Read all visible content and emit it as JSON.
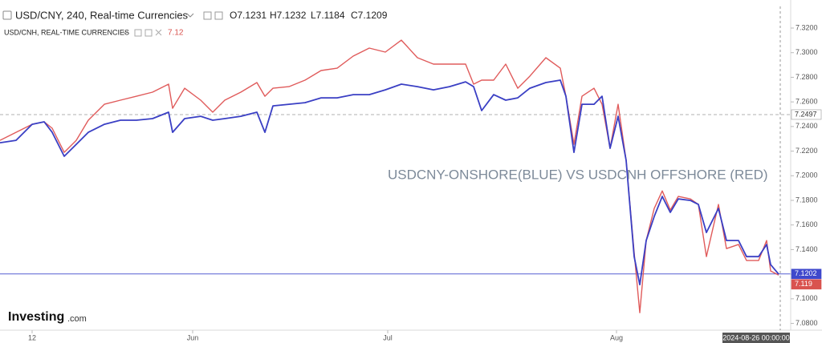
{
  "chart_data": {
    "type": "line",
    "header": {
      "ohlc": [
        "O7.1231",
        "H7.1232",
        "L7.1184",
        "C7.1209"
      ],
      "last": 7.12
    },
    "annotation": "USDCNY-ONSHORE(BLUE) VS USDCNH OFFSHORE (RED)",
    "logo": {
      "brand": "Investing",
      "suffix": ".com"
    },
    "crosshair_label": "2024-08-26 00:00:00",
    "x": [
      0,
      20,
      40,
      55,
      65,
      80,
      95,
      110,
      130,
      150,
      170,
      190,
      210,
      215,
      230,
      250,
      265,
      280,
      300,
      320,
      330,
      340,
      360,
      380,
      400,
      420,
      440,
      460,
      480,
      500,
      520,
      540,
      560,
      580,
      590,
      600,
      615,
      630,
      645,
      660,
      680,
      698,
      705,
      715,
      725,
      740,
      750,
      760,
      770,
      780,
      790,
      797,
      805,
      815,
      825,
      835,
      845,
      860,
      870,
      880,
      895,
      905,
      920,
      930,
      945,
      955,
      960,
      970
    ],
    "xlim": [
      0,
      985
    ],
    "xticks": [
      {
        "value": 40,
        "label": "12"
      },
      {
        "value": 240,
        "label": "Jun"
      },
      {
        "value": 483,
        "label": "Jul"
      },
      {
        "value": 768,
        "label": "Aug"
      }
    ],
    "ylim": [
      7.0745,
      7.3428
    ],
    "yticks": [
      {
        "value": 7.08,
        "label": "7.0800"
      },
      {
        "value": 7.1,
        "label": "7.1000"
      },
      {
        "value": 7.12,
        "label": "7.1200"
      },
      {
        "value": 7.14,
        "label": "7.1400"
      },
      {
        "value": 7.16,
        "label": "7.1600"
      },
      {
        "value": 7.18,
        "label": "7.1800"
      },
      {
        "value": 7.2,
        "label": "7.2000"
      },
      {
        "value": 7.22,
        "label": "7.2200"
      },
      {
        "value": 7.24,
        "label": "7.2400"
      },
      {
        "value": 7.26,
        "label": "7.2600"
      },
      {
        "value": 7.28,
        "label": "7.2800"
      },
      {
        "value": 7.3,
        "label": "7.3000"
      },
      {
        "value": 7.32,
        "label": "7.3200"
      }
    ],
    "price_lines": [
      {
        "value": 7.2497,
        "color": "#999999",
        "style": "dashed"
      },
      {
        "value": 7.1202,
        "color": "#3f48cc",
        "style": "solid"
      },
      {
        "value": 7.119,
        "color": "#d9534f",
        "style": "none"
      }
    ],
    "series": [
      {
        "name": "USD/CNY, 240, Real-time Currencies",
        "color": "#3a3fc4",
        "values": [
          7.2268,
          7.2288,
          7.2418,
          7.2438,
          7.2353,
          7.2158,
          7.2255,
          7.2353,
          7.2418,
          7.2451,
          7.2451,
          7.2464,
          7.2516,
          7.2353,
          7.2464,
          7.2483,
          7.2451,
          7.2464,
          7.2483,
          7.2516,
          7.2353,
          7.2568,
          7.2581,
          7.2594,
          7.2633,
          7.2633,
          7.2659,
          7.2659,
          7.2698,
          7.2744,
          7.2724,
          7.2698,
          7.2724,
          7.2763,
          7.2724,
          7.2529,
          7.2659,
          7.2614,
          7.2633,
          7.2711,
          7.2757,
          7.2777,
          7.2646,
          7.219,
          7.2581,
          7.2581,
          7.2646,
          7.2223,
          7.2483,
          7.2125,
          7.1343,
          7.1115,
          7.1474,
          7.1669,
          7.1832,
          7.1702,
          7.1812,
          7.1799,
          7.1767,
          7.1539,
          7.1734,
          7.1474,
          7.1474,
          7.1343,
          7.1343,
          7.1441,
          7.1278,
          7.12
        ]
      },
      {
        "name": "USD/CNH, REAL-TIME CURRENCIES",
        "color": "#e05b5b",
        "values": [
          7.2288,
          7.2353,
          7.2418,
          7.2438,
          7.2386,
          7.219,
          7.2288,
          7.2451,
          7.2581,
          7.2614,
          7.2646,
          7.2679,
          7.2744,
          7.2548,
          7.2711,
          7.2614,
          7.2516,
          7.2614,
          7.2679,
          7.2757,
          7.2646,
          7.2711,
          7.2724,
          7.2777,
          7.2855,
          7.2874,
          7.2972,
          7.3037,
          7.3005,
          7.3102,
          7.2959,
          7.2907,
          7.2907,
          7.2907,
          7.2744,
          7.2777,
          7.2777,
          7.2907,
          7.2711,
          7.2809,
          7.2959,
          7.2874,
          7.2646,
          7.2255,
          7.2646,
          7.2711,
          7.2581,
          7.2223,
          7.2581,
          7.2125,
          7.1376,
          7.0887,
          7.1474,
          7.1734,
          7.1877,
          7.1721,
          7.1832,
          7.1812,
          7.1767,
          7.1343,
          7.1767,
          7.1408,
          7.1441,
          7.1311,
          7.1311,
          7.1474,
          7.1226,
          7.1193
        ]
      }
    ]
  }
}
